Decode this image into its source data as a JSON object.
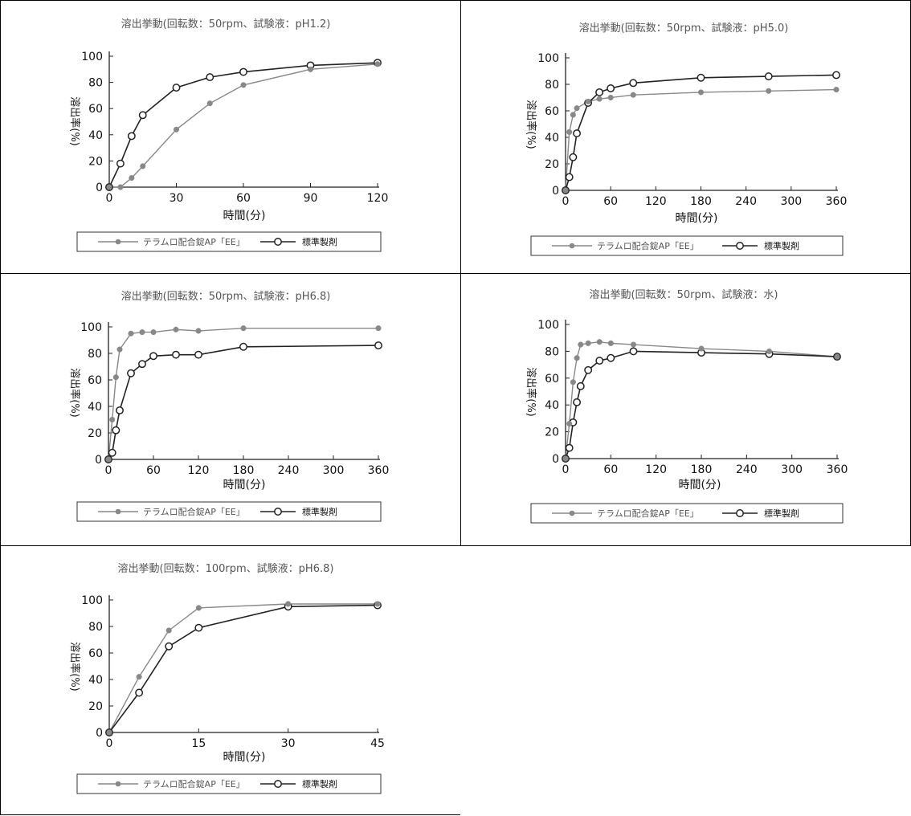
{
  "legend": {
    "series_a": "テラムロ配合錠AP「EE」",
    "series_b": "標準製剤"
  },
  "colors": {
    "series_a": "#888888",
    "series_b": "#222222",
    "axis": "#222222"
  },
  "chart_data": [
    {
      "type": "line",
      "title": "溶出挙動(回転数：50rpm、試験液：pH1.2)",
      "xlabel": "時間(分)",
      "ylabel": "溶出率(%)",
      "xlim": [
        0,
        120
      ],
      "ylim": [
        0,
        100
      ],
      "xticks": [
        0,
        30,
        60,
        90,
        120
      ],
      "yticks": [
        0,
        20,
        40,
        60,
        80,
        100
      ],
      "grid": false,
      "legend_position": "bottom",
      "series": [
        {
          "name": "テラムロ配合錠AP「EE」",
          "marker": "filled",
          "x": [
            0,
            5,
            10,
            15,
            30,
            45,
            60,
            90,
            120
          ],
          "y": [
            0,
            0,
            7,
            16,
            44,
            64,
            78,
            90,
            94
          ]
        },
        {
          "name": "標準製剤",
          "marker": "open",
          "x": [
            0,
            5,
            10,
            15,
            30,
            45,
            60,
            90,
            120
          ],
          "y": [
            0,
            18,
            39,
            55,
            76,
            84,
            88,
            93,
            95
          ]
        }
      ]
    },
    {
      "type": "line",
      "title": "溶出挙動(回転数：50rpm、試験液：pH5.0)",
      "xlabel": "時間(分)",
      "ylabel": "溶出率(%)",
      "xlim": [
        0,
        360
      ],
      "ylim": [
        0,
        100
      ],
      "xticks": [
        0,
        60,
        120,
        180,
        240,
        300,
        360
      ],
      "yticks": [
        0,
        20,
        40,
        60,
        80,
        100
      ],
      "grid": false,
      "legend_position": "bottom",
      "series": [
        {
          "name": "テラムロ配合錠AP「EE」",
          "marker": "filled",
          "x": [
            0,
            5,
            10,
            15,
            30,
            45,
            60,
            90,
            180,
            270,
            360
          ],
          "y": [
            0,
            44,
            57,
            62,
            67,
            69,
            70,
            72,
            74,
            75,
            76
          ]
        },
        {
          "name": "標準製剤",
          "marker": "open",
          "x": [
            0,
            5,
            10,
            15,
            30,
            45,
            60,
            90,
            180,
            270,
            360
          ],
          "y": [
            0,
            10,
            25,
            43,
            66,
            74,
            77,
            81,
            85,
            86,
            87
          ]
        }
      ]
    },
    {
      "type": "line",
      "title": "溶出挙動(回転数：50rpm、試験液：pH6.8)",
      "xlabel": "時間(分)",
      "ylabel": "溶出率(%)",
      "xlim": [
        0,
        360
      ],
      "ylim": [
        0,
        100
      ],
      "xticks": [
        0,
        60,
        120,
        180,
        240,
        300,
        360
      ],
      "yticks": [
        0,
        20,
        40,
        60,
        80,
        100
      ],
      "grid": false,
      "legend_position": "bottom",
      "series": [
        {
          "name": "テラムロ配合錠AP「EE」",
          "marker": "filled",
          "x": [
            0,
            5,
            10,
            15,
            30,
            45,
            60,
            90,
            120,
            180,
            360
          ],
          "y": [
            0,
            30,
            62,
            83,
            95,
            96,
            96,
            98,
            97,
            99,
            99
          ]
        },
        {
          "name": "標準製剤",
          "marker": "open",
          "x": [
            0,
            5,
            10,
            15,
            30,
            45,
            60,
            90,
            120,
            180,
            360
          ],
          "y": [
            0,
            5,
            22,
            37,
            65,
            72,
            78,
            79,
            79,
            85,
            86
          ]
        }
      ]
    },
    {
      "type": "line",
      "title": "溶出挙動(回転数：50rpm、試験液：水)",
      "xlabel": "時間(分)",
      "ylabel": "溶出率(%)",
      "xlim": [
        0,
        360
      ],
      "ylim": [
        0,
        100
      ],
      "xticks": [
        0,
        60,
        120,
        180,
        240,
        300,
        360
      ],
      "yticks": [
        0,
        20,
        40,
        60,
        80,
        100
      ],
      "grid": false,
      "legend_position": "bottom",
      "series": [
        {
          "name": "テラムロ配合錠AP「EE」",
          "marker": "filled",
          "x": [
            0,
            5,
            10,
            15,
            20,
            30,
            45,
            60,
            90,
            180,
            270,
            360
          ],
          "y": [
            0,
            26,
            57,
            75,
            85,
            86,
            87,
            86,
            85,
            82,
            80,
            76
          ]
        },
        {
          "name": "標準製剤",
          "marker": "open",
          "x": [
            0,
            5,
            10,
            15,
            20,
            30,
            45,
            60,
            90,
            180,
            270,
            360
          ],
          "y": [
            0,
            8,
            27,
            42,
            54,
            66,
            73,
            75,
            80,
            79,
            78,
            76
          ]
        }
      ]
    },
    {
      "type": "line",
      "title": "溶出挙動(回転数：100rpm、試験液：pH6.8)",
      "xlabel": "時間(分)",
      "ylabel": "溶出率(%)",
      "xlim": [
        0,
        45
      ],
      "ylim": [
        0,
        100
      ],
      "xticks": [
        0,
        15,
        30,
        45
      ],
      "yticks": [
        0,
        20,
        40,
        60,
        80,
        100
      ],
      "grid": false,
      "legend_position": "bottom",
      "series": [
        {
          "name": "テラムロ配合錠AP「EE」",
          "marker": "filled",
          "x": [
            0,
            5,
            10,
            15,
            30,
            45
          ],
          "y": [
            0,
            42,
            77,
            94,
            97,
            97
          ]
        },
        {
          "name": "標準製剤",
          "marker": "open",
          "x": [
            0,
            5,
            10,
            15,
            30,
            45
          ],
          "y": [
            0,
            30,
            65,
            79,
            95,
            96
          ]
        }
      ]
    }
  ]
}
